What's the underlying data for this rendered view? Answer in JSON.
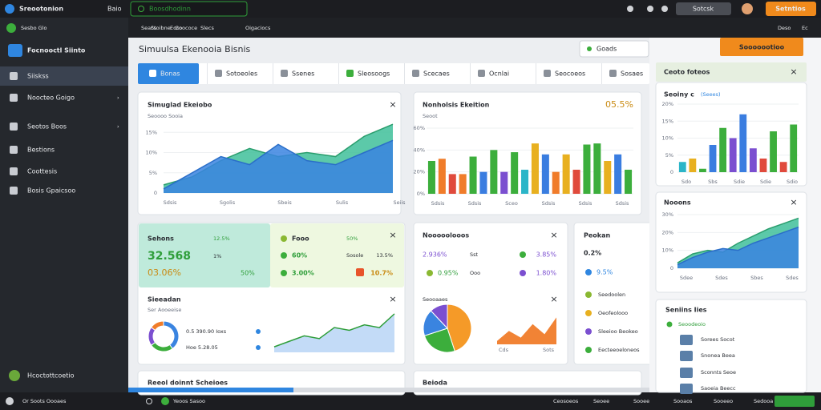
{
  "topbar": {
    "app": "Sreootonion",
    "menu": "Baio",
    "search": "Boosdhodinn",
    "button": "Sotcsk",
    "cta": "Setntios"
  },
  "subbar": {
    "left": [
      "Seacs",
      "Ecco"
    ],
    "tabs": [
      "Stoibne",
      "Goococe",
      "Slecs",
      "Oigaciocs"
    ],
    "right": [
      "Deso",
      "Ec"
    ]
  },
  "sidebar": {
    "account": "Sesbo Glo",
    "brand": "Focnooctl Siinto",
    "items": [
      "Siiskss",
      "Noocteo Goigo",
      "Seotos Boos",
      "Bestions",
      "Coottesis",
      "Bosis Gpaicsoo"
    ],
    "footer": "Hcoctottcoetio"
  },
  "main": {
    "title": "Simuulsa Ekenooia Bisnis",
    "dropdown": "Goads",
    "tabs": [
      "Bonas",
      "Sotoeoles",
      "Ssenes",
      "Sleosoogs",
      "Scecaes",
      "Ocnlai",
      "Seocoeos",
      "Sosaes"
    ]
  },
  "area_card": {
    "title": "Simuglad Ekeiobo",
    "subtitle": "Seoooo Sooia",
    "ylim": [
      0,
      20
    ],
    "yticks": [
      0,
      {
        "value": 5,
        "label": "5%"
      },
      {
        "value": 10,
        "label": "10%"
      },
      {
        "value": 15,
        "label": "15%"
      }
    ],
    "categories": [
      "Sdsis",
      null,
      "Sgolis",
      null,
      "Sbeis",
      null,
      "Sulis",
      null,
      "Seiis"
    ],
    "series": [
      {
        "color": "#3fbf9a",
        "values": [
          2,
          4,
          8,
          11,
          9,
          10,
          9,
          14,
          17
        ]
      },
      {
        "color": "#3a84e0",
        "values": [
          1,
          5,
          9,
          7,
          12,
          8,
          7,
          10,
          13
        ]
      }
    ]
  },
  "bar_card": {
    "title": "Nonholsis Ekeition",
    "subtitle": "Seoot",
    "headline": "05.5%",
    "ylim": [
      0,
      60
    ],
    "yticks": [
      {
        "value": 0,
        "label": "0%"
      },
      {
        "value": 20,
        "label": "20%"
      },
      {
        "value": 40,
        "label": "40%"
      },
      {
        "value": 60,
        "label": "60%"
      }
    ],
    "xlabels": [
      "Sdsis",
      "Sdsis",
      "Sceo",
      "Sdsis",
      "Sdsis",
      "Sdsis"
    ],
    "values": [
      30,
      32,
      18,
      18,
      34,
      20,
      40,
      20,
      38,
      22,
      46,
      36,
      20,
      36,
      22,
      45,
      46,
      30,
      36,
      22
    ],
    "colors": [
      "#3cae3c",
      "#f07c2a",
      "#e04a3c",
      "#f07c2a",
      "#3cae3c",
      "#3a7de0",
      "#3cae3c",
      "#7b4fd0",
      "#3cae3c",
      "#2bb5c8",
      "#e8b020",
      "#3a7de0",
      "#f07c2a",
      "#e8b020",
      "#e04a3c",
      "#3cae3c",
      "#3cae3c",
      "#e8b020",
      "#3a7de0",
      "#3cae3c"
    ]
  },
  "stats_card": {
    "left": {
      "title": "Sehons",
      "value": "32.568",
      "change": "03.06%",
      "items": [
        "12.5%",
        "1%",
        "50%"
      ]
    },
    "right": {
      "title": "Fooo",
      "items": [
        "50%",
        "60%",
        "3.00%",
        "Sosole",
        "13.5%",
        "10.7%"
      ]
    },
    "bottom": {
      "title": "Sieeadan",
      "subtitle": "Ser Aooeeise",
      "lines": [
        "0.5 390.90 Ioxs",
        "Hoe 5.28.05"
      ]
    },
    "donut": {
      "values": [
        40,
        25,
        20,
        15
      ],
      "colors": [
        "#3a84e0",
        "#3cae3c",
        "#7b4fd0",
        "#f07c2a"
      ]
    },
    "trend": {
      "ylim": [
        0,
        16
      ],
      "color": "#3a84e0",
      "values": [
        2,
        4,
        6,
        5,
        9,
        8,
        10,
        9,
        14
      ]
    }
  },
  "pie_card": {
    "title": "Nooooolooos",
    "items": [
      "2.936%",
      "Sst",
      "3.85%",
      "0.95%",
      "Ooo",
      "1.80%"
    ],
    "caption": "Seooaaes",
    "pie": {
      "values": [
        45,
        25,
        18,
        12
      ],
      "colors": [
        "#f59a28",
        "#3cae3c",
        "#3a84e0",
        "#7b4fd0"
      ]
    },
    "trend": {
      "ylim": [
        0,
        10
      ],
      "color": "#f07c2a",
      "values": [
        1,
        4,
        2,
        6,
        3,
        8
      ]
    },
    "xlabels": [
      "Cds",
      "Sots"
    ]
  },
  "side_card": {
    "title": "Peokan",
    "items": [
      "0.2%",
      "9.5%"
    ],
    "list": [
      "Seedoolen",
      "Oeofeolooo",
      "Sleeioo Beokeo",
      "Eecteeoeloneos"
    ]
  },
  "bottom_cards": [
    "Reeol doinnt Scheioes",
    "Beioda"
  ],
  "right_panel": {
    "cta": "Sooooootioo",
    "header": "Ceoto foteos",
    "bars": {
      "title": "Seoiny c",
      "tag": "(Seees)",
      "ylim": [
        0,
        20
      ],
      "yticks": [
        0,
        {
          "value": 5,
          "label": "5%"
        },
        {
          "value": 10,
          "label": "10%"
        },
        {
          "value": 15,
          "label": "15%"
        },
        {
          "value": 20,
          "label": "20%"
        }
      ],
      "xlabels": [
        "Sdo",
        "Sbs",
        "Sdie",
        "Sdie",
        "Sdio"
      ],
      "values": [
        3,
        4,
        1,
        8,
        13,
        10,
        17,
        7,
        4,
        12,
        3,
        14
      ],
      "colors": [
        "#2bb5c8",
        "#e8b020",
        "#3cae3c",
        "#3a7de0",
        "#3cae3c",
        "#7b4fd0",
        "#3a7de0",
        "#7b4fd0",
        "#e04a3c",
        "#3cae3c",
        "#e04a3c",
        "#3cae3c"
      ]
    },
    "area": {
      "title": "Nooons",
      "ylim": [
        0,
        30
      ],
      "yticks": [
        0,
        {
          "value": 10,
          "label": "10%"
        },
        {
          "value": 20,
          "label": "20%"
        },
        {
          "value": 30,
          "label": "30%"
        }
      ],
      "xlabels": [
        "Sdee",
        "Sdes",
        "Sbes",
        "Sdes"
      ],
      "series": [
        {
          "color": "#3fbf9a",
          "values": [
            3,
            8,
            10,
            9,
            14,
            18,
            22,
            25,
            28
          ]
        },
        {
          "color": "#3a84e0",
          "values": [
            2,
            6,
            9,
            11,
            10,
            14,
            17,
            20,
            23
          ]
        }
      ]
    },
    "list": {
      "title": "Seniins Iies",
      "items": [
        "Seoodeoio",
        "Sorees Socot",
        "Snonea Beea",
        "Sconnts Seoe",
        "Saoeia Beecc"
      ]
    }
  },
  "statusbar": {
    "left": "Or Soots Oooaes",
    "search": "Yeoos Sasoo",
    "right": [
      "Ceosoeos",
      "Seoee",
      "Sooee",
      "Sooaos",
      "Sooeeo",
      "Sedooa"
    ]
  }
}
